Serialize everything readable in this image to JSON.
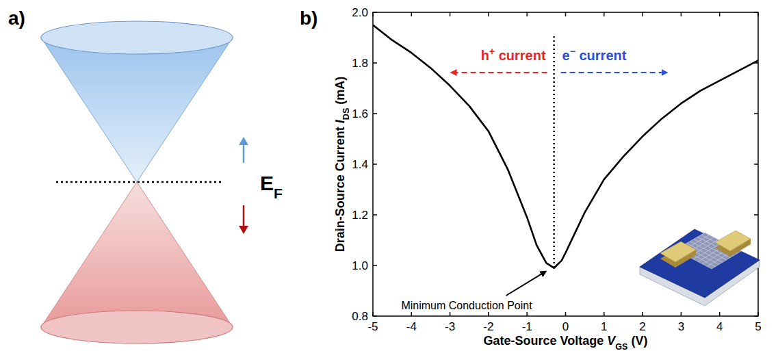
{
  "panels": [
    "a)",
    "b)"
  ],
  "diagram": {
    "fermi_level": [
      "E",
      "F"
    ]
  },
  "chart_data": {
    "type": "line",
    "xlabel": [
      "Gate-Source Voltage ",
      "V",
      "GS",
      " (V)"
    ],
    "ylabel": [
      "Drain-Source Current ",
      "I",
      "DS",
      " (mA)"
    ],
    "x": [
      -5,
      -4.5,
      -4,
      -3.5,
      -3,
      -2.5,
      -2,
      -1.5,
      -1,
      -0.75,
      -0.5,
      -0.3,
      -0.1,
      0,
      0.25,
      0.5,
      1,
      1.5,
      2,
      2.5,
      3,
      3.5,
      4,
      4.5,
      5
    ],
    "values": [
      1.95,
      1.89,
      1.84,
      1.78,
      1.71,
      1.63,
      1.53,
      1.38,
      1.19,
      1.08,
      1.01,
      0.99,
      1.02,
      1.05,
      1.13,
      1.21,
      1.34,
      1.43,
      1.51,
      1.58,
      1.64,
      1.69,
      1.73,
      1.77,
      1.81
    ],
    "color": "#000000",
    "xlim": [
      -5,
      5
    ],
    "ylim": [
      0.8,
      2.0
    ],
    "xticks": [
      -5,
      -4,
      -3,
      -2,
      -1,
      0,
      1,
      2,
      3,
      4,
      5
    ],
    "yticks": [
      0.8,
      {
        "value": 1.0,
        "label": "1.0"
      },
      1.2,
      1.4,
      1.6,
      1.8,
      {
        "value": 2.0,
        "label": "2.0"
      }
    ],
    "grid": false,
    "minimum": {
      "x": -0.3,
      "label": "Minimum Conduction Point"
    },
    "annotations": [
      {
        "text": [
          "h",
          "+",
          " current"
        ],
        "color": "#e8262a"
      },
      {
        "text": [
          "e",
          "−",
          " current"
        ],
        "color": "#2a4fe0"
      }
    ]
  }
}
